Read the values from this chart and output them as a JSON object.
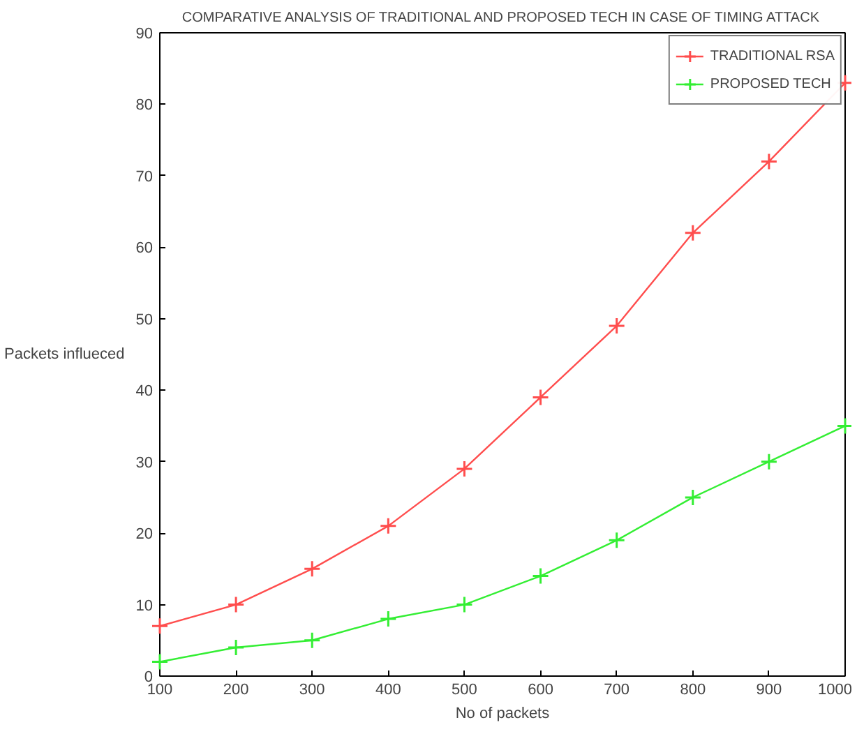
{
  "chart_data": {
    "type": "line",
    "title": "COMPARATIVE ANALYSIS OF TRADITIONAL AND PROPOSED TECH IN CASE OF TIMING ATTACK",
    "xlabel": "No of packets",
    "ylabel": "Packets influeced",
    "x": [
      100,
      200,
      300,
      400,
      500,
      600,
      700,
      800,
      900,
      1000
    ],
    "series": [
      {
        "name": "TRADITIONAL RSA",
        "color": "#ff4d4d",
        "values": [
          7,
          10,
          15,
          21,
          29,
          39,
          49,
          62,
          72,
          83
        ]
      },
      {
        "name": "PROPOSED TECH",
        "color": "#33ee33",
        "values": [
          2,
          4,
          5,
          8,
          10,
          14,
          19,
          25,
          30,
          35
        ]
      }
    ],
    "xlim": [
      100,
      1000
    ],
    "ylim": [
      0,
      90
    ],
    "xticks": [
      100,
      200,
      300,
      400,
      500,
      600,
      700,
      800,
      900,
      1000
    ],
    "yticks": [
      0,
      10,
      20,
      30,
      40,
      50,
      60,
      70,
      80,
      90
    ],
    "grid": false,
    "legend": "top right",
    "marker": "cross",
    "line_style": "solid"
  }
}
